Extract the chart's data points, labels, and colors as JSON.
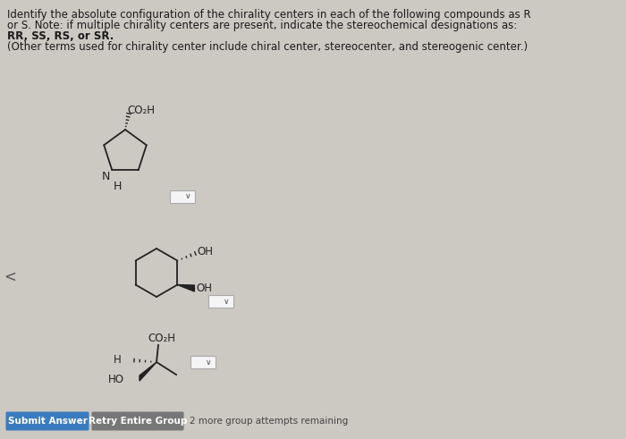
{
  "bg_color": "#ccc8c2",
  "text_color": "#1a1a1a",
  "title_lines": [
    "Identify the absolute configuration of the chirality centers in each of the following compounds as R",
    "or S. Note: if multiple chirality centers are present, indicate the stereochemical designations as:",
    "RR, SS, RS, or SR.",
    "(Other terms used for chirality center include chiral center, stereocenter, and stereogenic center.)"
  ],
  "button1_text": "Submit Answer",
  "button2_text": "Retry Entire Group",
  "remaining_text": "2 more group attempts remaining",
  "button1_color": "#3a7bbf",
  "button2_color": "#777777",
  "button_text_color": "#ffffff",
  "structure_color": "#222222",
  "dropdown_border": "#aaaaaa",
  "dropdown_bg": "#f5f5f5"
}
